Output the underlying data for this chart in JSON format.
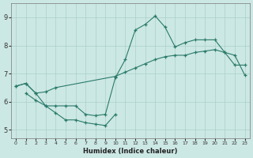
{
  "title": "",
  "xlabel": "Humidex (Indice chaleur)",
  "ylabel": "",
  "bg_color": "#cce8e4",
  "grid_color": "#aacfca",
  "line_color": "#2a7a6a",
  "xlim": [
    -0.5,
    23.5
  ],
  "ylim": [
    4.7,
    9.5
  ],
  "xticks": [
    0,
    1,
    2,
    3,
    4,
    5,
    6,
    7,
    8,
    9,
    10,
    11,
    12,
    13,
    14,
    15,
    16,
    17,
    18,
    19,
    20,
    21,
    22,
    23
  ],
  "yticks": [
    5,
    6,
    7,
    8,
    9
  ],
  "line1_x": [
    0,
    1,
    2,
    3,
    4,
    10,
    11,
    12,
    13,
    14,
    15,
    16,
    17,
    18,
    19,
    20,
    21,
    22,
    23
  ],
  "line1_y": [
    6.55,
    6.65,
    6.3,
    6.35,
    6.5,
    6.9,
    7.05,
    7.2,
    7.35,
    7.5,
    7.6,
    7.65,
    7.65,
    7.75,
    7.8,
    7.85,
    7.75,
    7.65,
    6.95
  ],
  "line2_x": [
    0,
    1,
    2,
    3,
    4,
    5,
    6,
    7,
    8,
    9,
    10,
    11,
    12,
    13,
    14,
    15,
    16,
    17,
    18,
    19,
    20,
    21,
    22,
    23
  ],
  "line2_y": [
    6.55,
    6.65,
    6.3,
    5.85,
    5.85,
    5.85,
    5.85,
    5.55,
    5.5,
    5.55,
    6.85,
    7.5,
    8.55,
    8.75,
    9.05,
    8.65,
    7.95,
    8.1,
    8.2,
    8.2,
    8.2,
    7.75,
    7.3,
    7.3
  ],
  "line3_x": [
    1,
    2,
    3,
    4,
    5,
    6,
    7,
    8,
    9,
    10
  ],
  "line3_y": [
    6.3,
    6.05,
    5.85,
    5.6,
    5.35,
    5.35,
    5.25,
    5.2,
    5.15,
    5.55
  ]
}
